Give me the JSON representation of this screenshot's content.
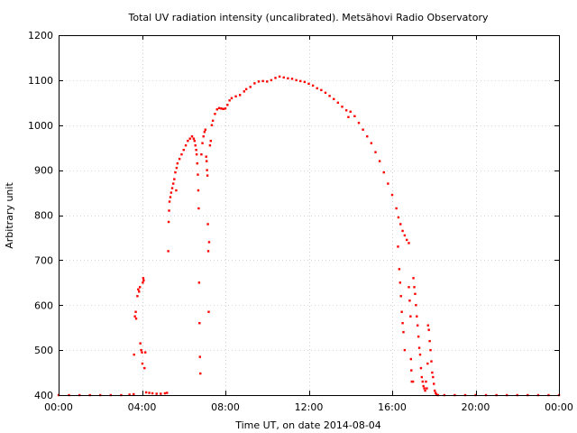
{
  "chart_data": {
    "type": "scatter",
    "title": "Total UV radiation intensity (uncalibrated). Metsähovi Radio Observatory",
    "xlabel": "Time UT, on date 2014-08-04",
    "ylabel": "Arbitrary unit",
    "xlim_hours": [
      0,
      24
    ],
    "ylim": [
      400,
      1200
    ],
    "x_ticks": [
      {
        "hour": 0,
        "label": "00:00"
      },
      {
        "hour": 4,
        "label": "04:00"
      },
      {
        "hour": 8,
        "label": "08:00"
      },
      {
        "hour": 12,
        "label": "12:00"
      },
      {
        "hour": 16,
        "label": "16:00"
      },
      {
        "hour": 20,
        "label": "20:00"
      },
      {
        "hour": 24,
        "label": "00:00"
      }
    ],
    "y_ticks": [
      400,
      500,
      600,
      700,
      800,
      900,
      1000,
      1100,
      1200
    ],
    "grid": true,
    "point_color": "#ff0000",
    "series": [
      {
        "points": [
          [
            0.0,
            400
          ],
          [
            0.5,
            400
          ],
          [
            1.0,
            400
          ],
          [
            1.5,
            400
          ],
          [
            2.0,
            400
          ],
          [
            2.5,
            400
          ],
          [
            3.0,
            400
          ],
          [
            3.4,
            401
          ],
          [
            3.6,
            402
          ],
          [
            3.62,
            490
          ],
          [
            3.66,
            575
          ],
          [
            3.7,
            585
          ],
          [
            3.72,
            570
          ],
          [
            3.78,
            620
          ],
          [
            3.82,
            635
          ],
          [
            3.86,
            630
          ],
          [
            3.9,
            640
          ],
          [
            3.92,
            515
          ],
          [
            3.96,
            500
          ],
          [
            4.0,
            495
          ],
          [
            4.02,
            470
          ],
          [
            4.04,
            650
          ],
          [
            4.06,
            660
          ],
          [
            4.08,
            655
          ],
          [
            4.12,
            460
          ],
          [
            4.16,
            495
          ],
          [
            4.2,
            406
          ],
          [
            4.35,
            405
          ],
          [
            4.5,
            404
          ],
          [
            4.7,
            403
          ],
          [
            4.9,
            403
          ],
          [
            5.1,
            404
          ],
          [
            5.2,
            405
          ],
          [
            5.26,
            720
          ],
          [
            5.28,
            785
          ],
          [
            5.3,
            810
          ],
          [
            5.32,
            830
          ],
          [
            5.36,
            840
          ],
          [
            5.4,
            850
          ],
          [
            5.45,
            860
          ],
          [
            5.5,
            870
          ],
          [
            5.55,
            880
          ],
          [
            5.6,
            895
          ],
          [
            5.64,
            855
          ],
          [
            5.66,
            905
          ],
          [
            5.7,
            915
          ],
          [
            5.8,
            925
          ],
          [
            5.9,
            935
          ],
          [
            6.0,
            945
          ],
          [
            6.1,
            955
          ],
          [
            6.2,
            965
          ],
          [
            6.3,
            970
          ],
          [
            6.4,
            975
          ],
          [
            6.48,
            970
          ],
          [
            6.52,
            965
          ],
          [
            6.56,
            955
          ],
          [
            6.6,
            945
          ],
          [
            6.62,
            935
          ],
          [
            6.65,
            915
          ],
          [
            6.68,
            890
          ],
          [
            6.7,
            855
          ],
          [
            6.72,
            815
          ],
          [
            6.74,
            650
          ],
          [
            6.76,
            560
          ],
          [
            6.78,
            485
          ],
          [
            6.8,
            448
          ],
          [
            6.85,
            935
          ],
          [
            6.9,
            960
          ],
          [
            6.95,
            975
          ],
          [
            7.0,
            985
          ],
          [
            7.04,
            990
          ],
          [
            7.08,
            930
          ],
          [
            7.1,
            920
          ],
          [
            7.12,
            900
          ],
          [
            7.14,
            888
          ],
          [
            7.16,
            780
          ],
          [
            7.18,
            720
          ],
          [
            7.2,
            585
          ],
          [
            7.22,
            740
          ],
          [
            7.26,
            955
          ],
          [
            7.3,
            965
          ],
          [
            7.35,
            1000
          ],
          [
            7.4,
            1010
          ],
          [
            7.5,
            1025
          ],
          [
            7.6,
            1035
          ],
          [
            7.7,
            1038
          ],
          [
            7.8,
            1037
          ],
          [
            7.9,
            1036
          ],
          [
            8.0,
            1037
          ],
          [
            8.1,
            1045
          ],
          [
            8.2,
            1055
          ],
          [
            8.3,
            1060
          ],
          [
            8.5,
            1064
          ],
          [
            8.7,
            1067
          ],
          [
            8.9,
            1075
          ],
          [
            9.0,
            1080
          ],
          [
            9.2,
            1085
          ],
          [
            9.4,
            1093
          ],
          [
            9.6,
            1097
          ],
          [
            9.8,
            1098
          ],
          [
            10.0,
            1097
          ],
          [
            10.2,
            1100
          ],
          [
            10.4,
            1105
          ],
          [
            10.6,
            1108
          ],
          [
            10.8,
            1106
          ],
          [
            11.0,
            1104
          ],
          [
            11.2,
            1103
          ],
          [
            11.4,
            1100
          ],
          [
            11.6,
            1098
          ],
          [
            11.8,
            1096
          ],
          [
            12.0,
            1092
          ],
          [
            12.2,
            1088
          ],
          [
            12.4,
            1082
          ],
          [
            12.6,
            1078
          ],
          [
            12.8,
            1072
          ],
          [
            13.0,
            1065
          ],
          [
            13.2,
            1058
          ],
          [
            13.4,
            1050
          ],
          [
            13.6,
            1041
          ],
          [
            13.8,
            1033
          ],
          [
            13.9,
            1018
          ],
          [
            14.0,
            1030
          ],
          [
            14.2,
            1020
          ],
          [
            14.4,
            1005
          ],
          [
            14.6,
            990
          ],
          [
            14.8,
            975
          ],
          [
            15.0,
            960
          ],
          [
            15.2,
            940
          ],
          [
            15.4,
            920
          ],
          [
            15.6,
            895
          ],
          [
            15.8,
            870
          ],
          [
            16.0,
            845
          ],
          [
            16.2,
            815
          ],
          [
            16.3,
            795
          ],
          [
            16.4,
            780
          ],
          [
            16.5,
            765
          ],
          [
            16.6,
            755
          ],
          [
            16.7,
            745
          ],
          [
            16.8,
            738
          ],
          [
            16.28,
            730
          ],
          [
            16.34,
            680
          ],
          [
            16.38,
            650
          ],
          [
            16.42,
            620
          ],
          [
            16.46,
            585
          ],
          [
            16.5,
            560
          ],
          [
            16.54,
            540
          ],
          [
            16.6,
            500
          ],
          [
            16.8,
            640
          ],
          [
            16.84,
            610
          ],
          [
            16.88,
            575
          ],
          [
            16.9,
            480
          ],
          [
            16.92,
            455
          ],
          [
            16.94,
            430
          ],
          [
            17.0,
            430
          ],
          [
            17.02,
            660
          ],
          [
            17.06,
            640
          ],
          [
            17.1,
            625
          ],
          [
            17.14,
            600
          ],
          [
            17.18,
            575
          ],
          [
            17.22,
            555
          ],
          [
            17.26,
            530
          ],
          [
            17.3,
            505
          ],
          [
            17.34,
            490
          ],
          [
            17.38,
            460
          ],
          [
            17.42,
            440
          ],
          [
            17.46,
            430
          ],
          [
            17.5,
            420
          ],
          [
            17.54,
            415
          ],
          [
            17.58,
            410
          ],
          [
            17.62,
            430
          ],
          [
            17.66,
            415
          ],
          [
            17.7,
            470
          ],
          [
            17.72,
            555
          ],
          [
            17.76,
            545
          ],
          [
            17.8,
            520
          ],
          [
            17.84,
            500
          ],
          [
            17.88,
            475
          ],
          [
            17.92,
            450
          ],
          [
            17.96,
            440
          ],
          [
            18.0,
            425
          ],
          [
            18.04,
            410
          ],
          [
            18.08,
            405
          ],
          [
            18.12,
            402
          ],
          [
            18.2,
            400
          ],
          [
            18.5,
            400
          ],
          [
            19.0,
            400
          ],
          [
            19.5,
            400
          ],
          [
            20.0,
            400
          ],
          [
            20.5,
            400
          ],
          [
            21.0,
            400
          ],
          [
            21.5,
            400
          ],
          [
            22.0,
            400
          ],
          [
            22.5,
            400
          ],
          [
            23.0,
            400
          ],
          [
            23.5,
            400
          ],
          [
            24.0,
            400
          ]
        ]
      }
    ]
  }
}
